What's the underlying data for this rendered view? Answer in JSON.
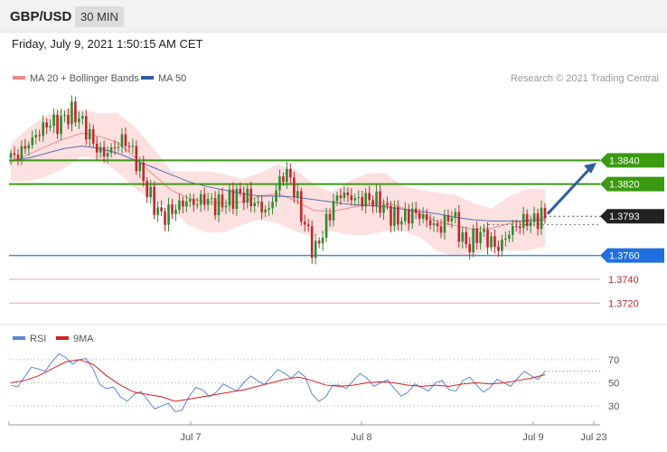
{
  "header": {
    "pair": "GBP/USD",
    "timeframe": "30 MIN"
  },
  "datetime": "Friday, July 9, 2021 1:50:15 AM CET",
  "legend": [
    {
      "label": "MA 20 + Bollinger Bands",
      "color": "#f08a8a"
    },
    {
      "label": "MA 50",
      "color": "#2d5d9f"
    }
  ],
  "credit": "Research © 2021 Trading Central",
  "colors": {
    "up": "#2e8b2e",
    "down": "#c0272d",
    "ma20": "#f08a8a",
    "ma50": "#5570b0",
    "band": "#fde0e0",
    "arrow": "#2d5d9f"
  },
  "chart_data": [
    {
      "type": "candlestick",
      "y_range": [
        1.3705,
        1.3895
      ],
      "x_labels": [
        "Jul 7",
        "Jul 8",
        "Jul 9",
        "Jul 23"
      ],
      "levels": [
        {
          "value": 1.384,
          "label": "1.3840",
          "style": "resistance",
          "color": "#3a9a10"
        },
        {
          "value": 1.382,
          "label": "1.3820",
          "style": "resistance",
          "color": "#3a9a10"
        },
        {
          "value": 1.3793,
          "label": "1.3793",
          "style": "current",
          "color": "#222222"
        },
        {
          "value": 1.376,
          "label": "1.3760",
          "style": "support",
          "color": "#1f6fe0"
        },
        {
          "value": 1.374,
          "label": "1.3740",
          "style": "minor",
          "color": "#c0272d"
        },
        {
          "value": 1.372,
          "label": "1.3720",
          "style": "minor",
          "color": "#c0272d"
        }
      ],
      "close_path": [
        1.3842,
        1.3845,
        1.385,
        1.3856,
        1.3862,
        1.3868,
        1.3872,
        1.387,
        1.3875,
        1.388,
        1.3878,
        1.387,
        1.386,
        1.385,
        1.3845,
        1.3848,
        1.3852,
        1.3858,
        1.3852,
        1.384,
        1.3825,
        1.381,
        1.38,
        1.3792,
        1.3796,
        1.38,
        1.3804,
        1.3806,
        1.3803,
        1.3808,
        1.3806,
        1.3802,
        1.3804,
        1.3806,
        1.381,
        1.3812,
        1.3808,
        1.3804,
        1.38,
        1.3796,
        1.3812,
        1.3826,
        1.383,
        1.3815,
        1.3795,
        1.378,
        1.3762,
        1.3775,
        1.379,
        1.3805,
        1.3812,
        1.381,
        1.3808,
        1.3806,
        1.3808,
        1.3806,
        1.3804,
        1.3798,
        1.3792,
        1.379,
        1.3793,
        1.3796,
        1.3794,
        1.379,
        1.3786,
        1.3782,
        1.379,
        1.3795,
        1.378,
        1.3768,
        1.3772,
        1.378,
        1.3776,
        1.377,
        1.3766,
        1.3775,
        1.3782,
        1.3786,
        1.379,
        1.3788,
        1.3792,
        1.3793
      ],
      "ma20": [
        1.3838,
        1.3845,
        1.3852,
        1.3858,
        1.3863,
        1.386,
        1.3855,
        1.3842,
        1.3828,
        1.3815,
        1.3808,
        1.3805,
        1.3804,
        1.3805,
        1.381,
        1.3812,
        1.3806,
        1.3798,
        1.3797,
        1.38,
        1.3803,
        1.3805,
        1.38,
        1.3795,
        1.3788,
        1.3785,
        1.3782,
        1.3783,
        1.3787,
        1.379,
        1.3792
      ],
      "ma50": [
        1.384,
        1.3842,
        1.3846,
        1.385,
        1.3852,
        1.385,
        1.3846,
        1.384,
        1.3834,
        1.3828,
        1.3822,
        1.3818,
        1.3815,
        1.3812,
        1.381,
        1.381,
        1.3809,
        1.3807,
        1.3805,
        1.3803,
        1.3802,
        1.3801,
        1.3799,
        1.3797,
        1.3795,
        1.3792,
        1.379,
        1.3789,
        1.3789,
        1.3789,
        1.379
      ]
    },
    {
      "type": "line",
      "title": "RSI",
      "legend": [
        {
          "label": "RSI",
          "color": "#5b86d6"
        },
        {
          "label": "9MA",
          "color": "#d62020"
        }
      ],
      "y_range": [
        20,
        80
      ],
      "y_ticks": [
        70,
        50,
        30
      ],
      "rsi": [
        48,
        55,
        62,
        68,
        72,
        70,
        62,
        45,
        38,
        40,
        35,
        30,
        25,
        38,
        44,
        42,
        46,
        50,
        52,
        55,
        58,
        60,
        40,
        38,
        48,
        52,
        54,
        50,
        45,
        42,
        46,
        50,
        44,
        52,
        48,
        46,
        50,
        54,
        56,
        60
      ],
      "ma9": [
        50,
        52,
        56,
        62,
        68,
        70,
        66,
        56,
        48,
        42,
        40,
        38,
        34,
        36,
        38,
        40,
        42,
        44,
        47,
        50,
        53,
        55,
        52,
        48,
        47,
        48,
        50,
        51,
        50,
        48,
        47,
        48,
        47,
        49,
        50,
        49,
        50,
        52,
        54,
        57
      ]
    }
  ]
}
